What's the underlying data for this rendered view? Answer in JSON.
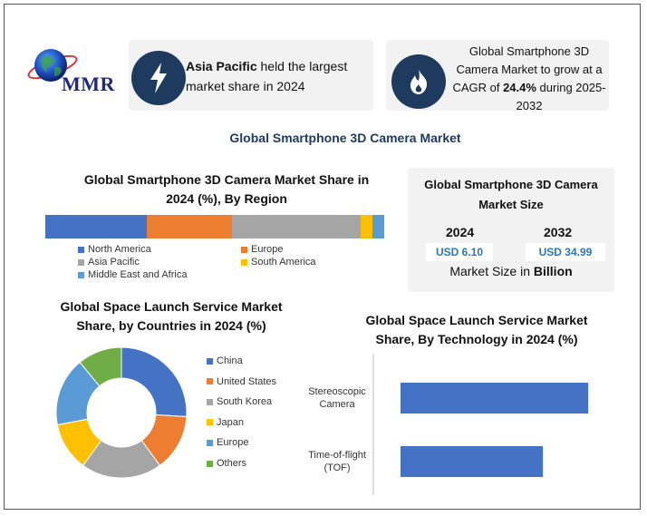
{
  "brand": {
    "logo_text": "MMR"
  },
  "cards": [
    {
      "icon": "lightning-icon",
      "bold": "Asia Pacific",
      "text": " held the largest market share in 2024"
    },
    {
      "icon": "flame-icon",
      "pre": "Global Smartphone 3D Camera Market to grow at a CAGR of ",
      "bold": "24.4%",
      "post": " during 2025-2032"
    }
  ],
  "main_title": "Global Smartphone 3D Camera Market",
  "colors": {
    "north_america": "#4472c4",
    "europe": "#ed7d31",
    "asia_pacific": "#a5a5a5",
    "south_america": "#ffc000",
    "middle_east_africa": "#5b9bd5",
    "others": "#70ad47",
    "icon_bg": "#1e3a5f",
    "value_text": "#2e75b6"
  },
  "market_size": {
    "title": "Global Smartphone 3D Camera Market Size",
    "years": [
      "2024",
      "2032"
    ],
    "values": [
      "USD 6.10",
      "USD 34.99"
    ],
    "footer_pre": "Market Size in ",
    "footer_bold": "Billion"
  },
  "chart_data": [
    {
      "type": "bar",
      "orientation": "horizontal-stacked-100",
      "title": "Global Smartphone 3D Camera Market Share in 2024 (%), By Region",
      "series": [
        {
          "name": "North America",
          "values": [
            30
          ]
        },
        {
          "name": "Europe",
          "values": [
            25
          ]
        },
        {
          "name": "Asia Pacific",
          "values": [
            38
          ]
        },
        {
          "name": "South America",
          "values": [
            3.5
          ]
        },
        {
          "name": "Middle East and Africa",
          "values": [
            3.5
          ]
        }
      ],
      "legend": "bottom"
    },
    {
      "type": "pie",
      "variant": "donut",
      "title": "Global Space Launch Service Market Share, by Countries in 2024 (%)",
      "labels": [
        "China",
        "United States",
        "South Korea",
        "Japan",
        "Europe",
        "Others"
      ],
      "values": [
        26,
        14,
        20,
        12,
        17,
        11
      ],
      "legend": "right"
    },
    {
      "type": "bar",
      "orientation": "horizontal",
      "title": "Global Space Launch Service  Market Share, By Technology in 2024 (%)",
      "categories": [
        "Stereoscopic Camera",
        "Time-of-flight (TOF)"
      ],
      "category_lines": [
        [
          "Stereoscopic",
          "Camera"
        ],
        [
          "Time-of-flight",
          "(TOF)"
        ]
      ],
      "values": [
        58,
        44
      ],
      "xlim": [
        0,
        70
      ],
      "grid": false
    }
  ]
}
